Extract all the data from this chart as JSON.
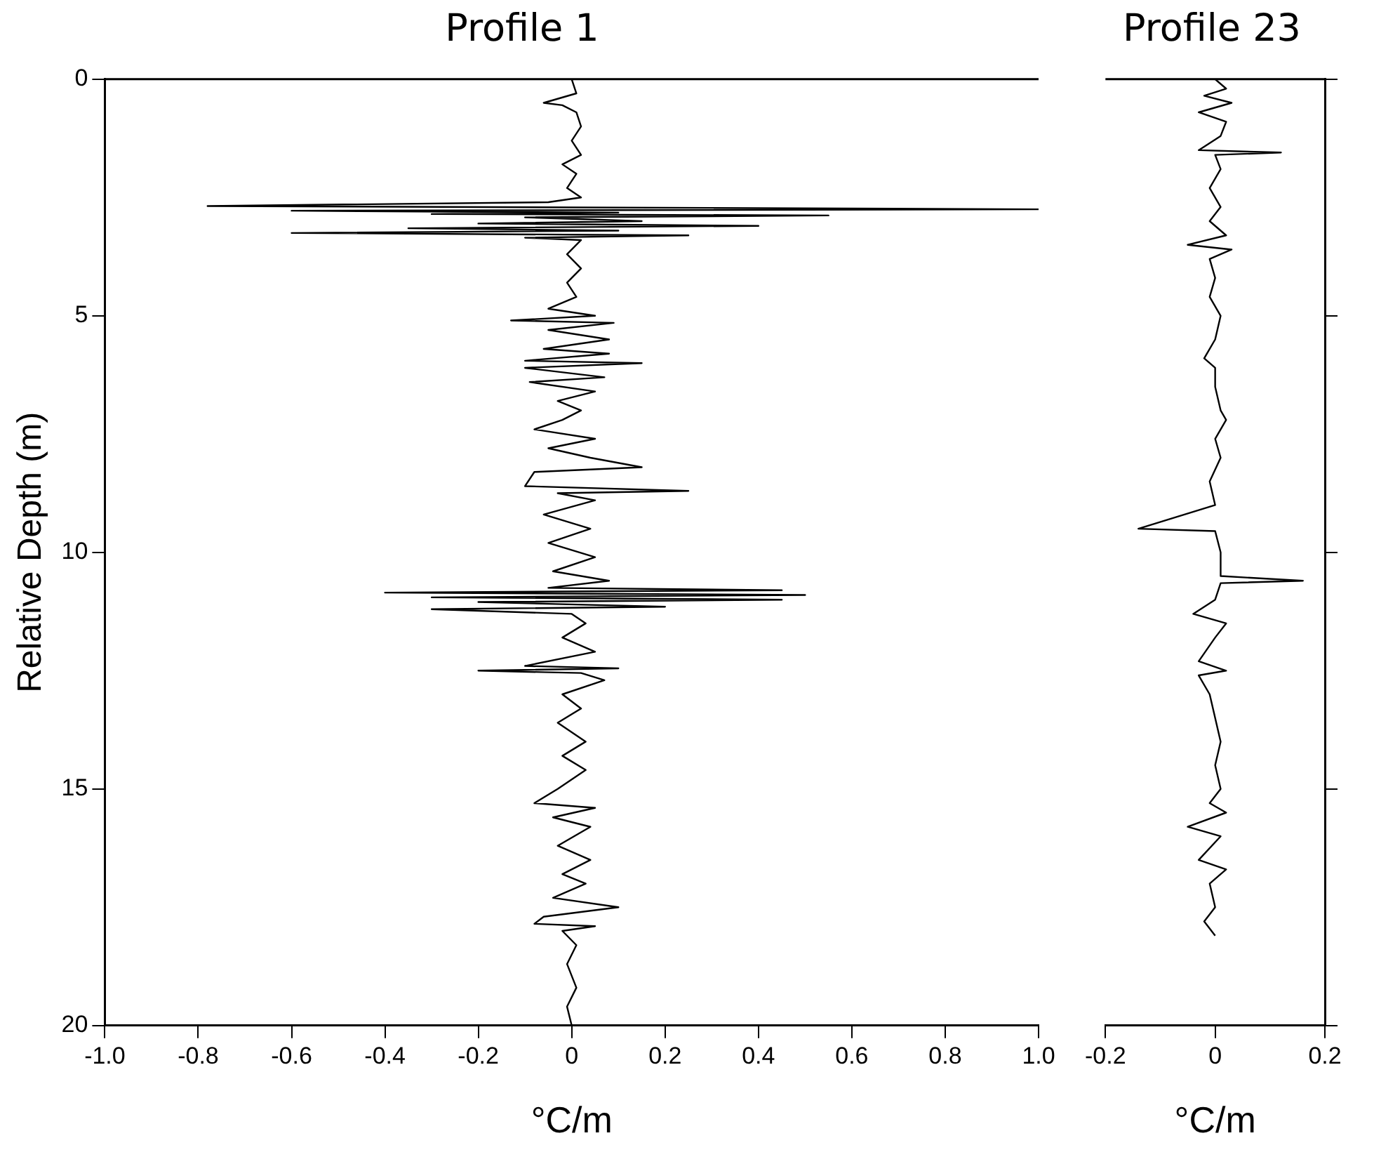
{
  "chart_data": [
    {
      "type": "line",
      "title": "Profile 1",
      "xlabel": "°C/m",
      "ylabel": "Relative Depth (m)",
      "xlim": [
        -1,
        1
      ],
      "xticks": [
        {
          "value": -1,
          "label": "-1.0"
        },
        -0.8,
        -0.6,
        -0.4,
        -0.2,
        0,
        0.2,
        0.4,
        0.6,
        0.8,
        {
          "value": 1,
          "label": "1.0"
        }
      ],
      "ylim": [
        20,
        0
      ],
      "yticks": [
        0,
        5,
        10,
        15,
        20
      ],
      "grid": false,
      "legend": false,
      "marker": "none",
      "series": [
        {
          "color": "#000000",
          "x": [
            0,
            0.01,
            -0.06,
            -0.02,
            0.01,
            0.02,
            0,
            0.02,
            -0.02,
            0.01,
            -0.01,
            0.02,
            -0.05,
            -0.78,
            0.3,
            1.0,
            -0.6,
            0.1,
            -0.3,
            0.55,
            -0.1,
            0.15,
            -0.2,
            0.4,
            -0.35,
            0.1,
            -0.6,
            0.25,
            -0.1,
            0.02,
            -0.01,
            0.02,
            -0.01,
            0.01,
            -0.05,
            0.05,
            -0.13,
            0.09,
            -0.05,
            0.08,
            -0.06,
            0.08,
            -0.1,
            0.15,
            -0.1,
            0.07,
            -0.09,
            0.05,
            -0.03,
            0.02,
            -0.02,
            -0.08,
            0.05,
            -0.05,
            0.04,
            0.15,
            -0.08,
            -0.1,
            0.25,
            -0.03,
            0.05,
            -0.06,
            0.04,
            -0.05,
            0.05,
            -0.04,
            0.08,
            -0.05,
            0.45,
            -0.4,
            0.5,
            -0.3,
            0.45,
            -0.2,
            0.2,
            -0.3,
            0,
            0.03,
            -0.02,
            0.05,
            -0.1,
            0.1,
            -0.2,
            0.02,
            0.07,
            -0.02,
            0.02,
            -0.03,
            0.03,
            -0.02,
            0.03,
            -0.03,
            -0.08,
            0.05,
            -0.04,
            0.04,
            -0.03,
            0.04,
            -0.02,
            0.03,
            -0.04,
            0.1,
            -0.06,
            -0.08,
            0.05,
            -0.02,
            0.01,
            -0.01,
            0.01,
            -0.01,
            0
          ],
          "values": [
            0,
            0.3,
            0.5,
            0.55,
            0.7,
            1.0,
            1.3,
            1.6,
            1.8,
            2.0,
            2.3,
            2.5,
            2.6,
            2.68,
            2.72,
            2.75,
            2.78,
            2.82,
            2.85,
            2.88,
            2.92,
            3.0,
            3.05,
            3.1,
            3.15,
            3.2,
            3.25,
            3.3,
            3.35,
            3.4,
            3.7,
            4.0,
            4.3,
            4.6,
            4.85,
            5.0,
            5.1,
            5.15,
            5.3,
            5.5,
            5.7,
            5.8,
            5.95,
            6.0,
            6.1,
            6.3,
            6.4,
            6.6,
            6.8,
            7.0,
            7.2,
            7.4,
            7.6,
            7.8,
            8.0,
            8.2,
            8.3,
            8.6,
            8.7,
            8.75,
            8.9,
            9.2,
            9.5,
            9.8,
            10.1,
            10.4,
            10.6,
            10.75,
            10.8,
            10.85,
            10.9,
            10.95,
            11.0,
            11.05,
            11.15,
            11.2,
            11.3,
            11.5,
            11.8,
            12.1,
            12.4,
            12.45,
            12.5,
            12.55,
            12.7,
            13.0,
            13.3,
            13.6,
            14.0,
            14.3,
            14.6,
            15.0,
            15.3,
            15.4,
            15.6,
            15.8,
            16.2,
            16.5,
            16.8,
            17.0,
            17.3,
            17.5,
            17.7,
            17.85,
            17.9,
            18.0,
            18.3,
            18.7,
            19.2,
            19.6,
            20.0
          ]
        }
      ]
    },
    {
      "type": "line",
      "title": "Profile 23",
      "xlabel": "°C/m",
      "xlim": [
        -0.2,
        0.2
      ],
      "xticks": [
        -0.2,
        0,
        0.2
      ],
      "ylim": [
        20,
        0
      ],
      "yticks": [
        0,
        5,
        10,
        15,
        20
      ],
      "tick_labels": "x",
      "grid": false,
      "legend": false,
      "marker": "none",
      "series": [
        {
          "color": "#000000",
          "x": [
            0,
            0.02,
            -0.02,
            0.03,
            -0.03,
            0.02,
            0.01,
            -0.03,
            0.12,
            0,
            0.01,
            -0.01,
            0.01,
            -0.01,
            0.02,
            -0.05,
            0.03,
            -0.01,
            0,
            -0.01,
            0.01,
            0,
            -0.02,
            0,
            0,
            0.01,
            0.02,
            0,
            0.01,
            -0.01,
            0,
            -0.14,
            0,
            0.01,
            0.01,
            0.16,
            0.01,
            0,
            -0.04,
            0.02,
            0,
            -0.03,
            0.02,
            -0.03,
            -0.01,
            0,
            0.01,
            0,
            0.01,
            -0.01,
            0.02,
            -0.05,
            0.01,
            -0.03,
            0.02,
            -0.01,
            0,
            -0.02,
            0
          ],
          "values": [
            0,
            0.2,
            0.35,
            0.5,
            0.7,
            0.9,
            1.2,
            1.5,
            1.55,
            1.6,
            1.9,
            2.3,
            2.7,
            3.0,
            3.3,
            3.5,
            3.6,
            3.8,
            4.2,
            4.6,
            5.0,
            5.5,
            5.9,
            6.1,
            6.5,
            7.0,
            7.2,
            7.6,
            8.0,
            8.5,
            9.0,
            9.5,
            9.55,
            10.0,
            10.5,
            10.6,
            10.65,
            11.0,
            11.3,
            11.5,
            11.8,
            12.3,
            12.5,
            12.6,
            13.0,
            13.5,
            14.0,
            14.5,
            15.0,
            15.3,
            15.5,
            15.8,
            16.0,
            16.5,
            16.7,
            17.0,
            17.5,
            17.8,
            18.1
          ]
        }
      ]
    }
  ]
}
